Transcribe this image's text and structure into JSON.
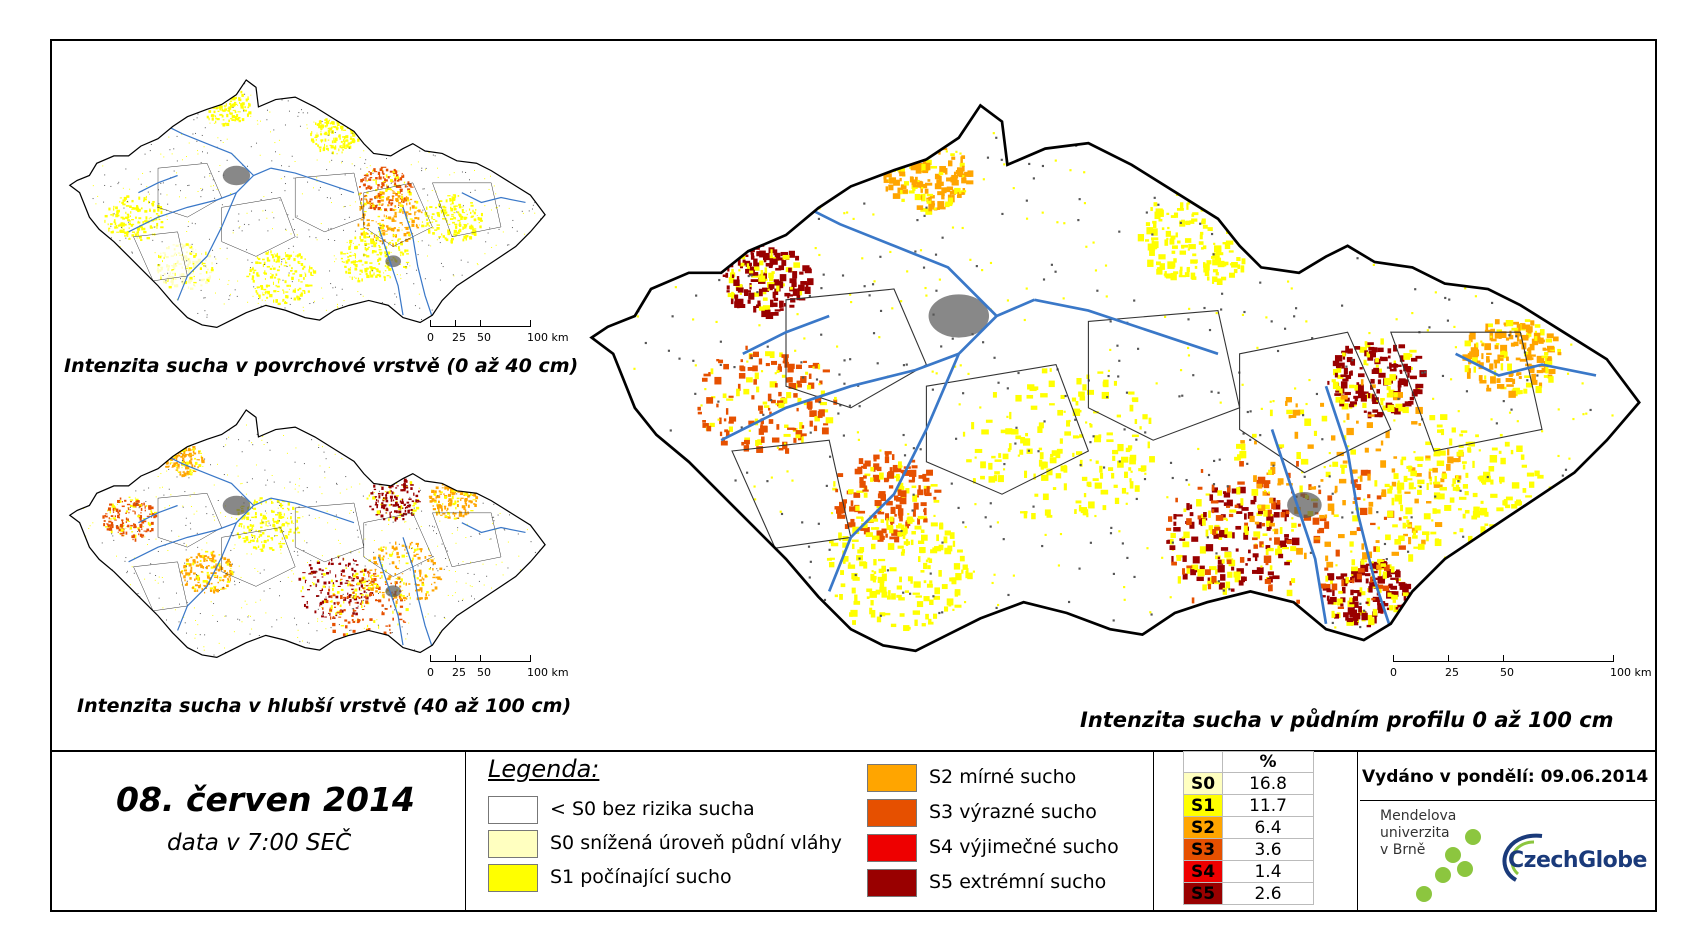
{
  "maps": {
    "surface": {
      "title": "Intenzita sucha v povrchové vrstvě (0 až 40 cm)"
    },
    "deep": {
      "title": "Intenzita sucha v hlubší vrstvě (40 až 100 cm)"
    },
    "profile": {
      "title": "Intenzita sucha v půdním profilu 0 až 100 cm"
    }
  },
  "scalebar": {
    "labels": [
      "0",
      "25",
      "50",
      "100 km"
    ]
  },
  "date": {
    "main": "08. červen 2014",
    "sub": "data v 7:00 SEČ"
  },
  "legend": {
    "title": "Legenda:",
    "items": [
      {
        "label": "< S0 bez rizika sucha",
        "color": "#ffffff"
      },
      {
        "label": "S0 snížená úroveň půdní vláhy",
        "color": "#ffffc0"
      },
      {
        "label": "S1 počínající sucho",
        "color": "#ffff00"
      },
      {
        "label": "S2 mírné sucho",
        "color": "#ffa500"
      },
      {
        "label": "S3 výrazné sucho",
        "color": "#e65000"
      },
      {
        "label": "S4 výjimečné sucho",
        "color": "#ee0000"
      },
      {
        "label": "S5 extrémní sucho",
        "color": "#990000"
      }
    ]
  },
  "percent_table": {
    "header": "%",
    "rows": [
      {
        "code": "S0",
        "value": "16.8",
        "color": "#ffffc0",
        "text": "#000000"
      },
      {
        "code": "S1",
        "value": "11.7",
        "color": "#ffff00",
        "text": "#000000"
      },
      {
        "code": "S2",
        "value": "6.4",
        "color": "#ffa500",
        "text": "#000000"
      },
      {
        "code": "S3",
        "value": "3.6",
        "color": "#e65000",
        "text": "#000000"
      },
      {
        "code": "S4",
        "value": "1.4",
        "color": "#ee0000",
        "text": "#000000"
      },
      {
        "code": "S5",
        "value": "2.6",
        "color": "#990000",
        "text": "#000000"
      }
    ]
  },
  "issued": "Vydáno v pondělí: 09.06.2014",
  "logos": {
    "mendel": [
      "Mendelova",
      "univerzita",
      "v Brně"
    ],
    "czechglobe": "CzechGlobe"
  },
  "colors": {
    "river": "#3a78c8",
    "city": "#555555",
    "border": "#000000"
  }
}
